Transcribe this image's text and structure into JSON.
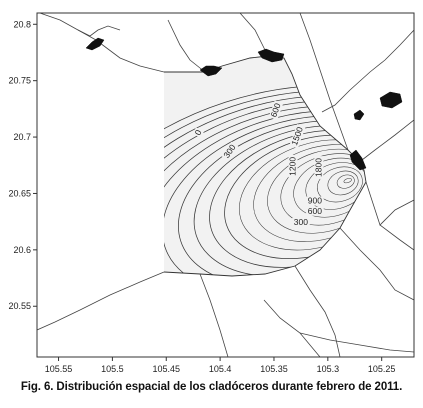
{
  "figure": {
    "caption": "Fig. 6. Distribución espacial de los cladóceros durante febrero de 2011."
  },
  "chart_data": {
    "type": "contour",
    "title": "",
    "xlabel": "",
    "ylabel": "",
    "xlim": [
      -105.57,
      -105.22
    ],
    "ylim": [
      20.505,
      20.81
    ],
    "x_ticks": [
      -105.55,
      -105.5,
      -105.45,
      -105.4,
      -105.35,
      -105.3,
      -105.25
    ],
    "x_tick_labels": [
      "105.55",
      "105.5",
      "105.45",
      "105.4",
      "105.35",
      "105.3",
      "105.25"
    ],
    "y_ticks": [
      20.55,
      20.6,
      20.65,
      20.7,
      20.75,
      20.8
    ],
    "y_tick_labels": [
      "20.55",
      "20.6",
      "20.65",
      "20.7",
      "20.75",
      "20.8"
    ],
    "contour_interval": 150,
    "contour_center": [
      -105.28,
      20.662
    ],
    "contour_levels": [
      0,
      150,
      300,
      450,
      600,
      750,
      900,
      1050,
      1200,
      1350,
      1500,
      1650,
      1800,
      1950,
      2100,
      2250,
      2400,
      2550,
      2700,
      2850,
      3000
    ],
    "contour_labels": [
      {
        "text": "0",
        "x": -105.418,
        "y": 20.703,
        "rotate": -65
      },
      {
        "text": "300",
        "x": -105.389,
        "y": 20.686,
        "rotate": -55
      },
      {
        "text": "300",
        "x": -105.325,
        "y": 20.622,
        "rotate": 0
      },
      {
        "text": "600",
        "x": -105.346,
        "y": 20.723,
        "rotate": -70
      },
      {
        "text": "600",
        "x": -105.312,
        "y": 20.632,
        "rotate": 0
      },
      {
        "text": "900",
        "x": -105.312,
        "y": 20.641,
        "rotate": 0
      },
      {
        "text": "1200",
        "x": -105.33,
        "y": 20.674,
        "rotate": -90
      },
      {
        "text": "1500",
        "x": -105.326,
        "y": 20.7,
        "rotate": -70
      },
      {
        "text": "1800",
        "x": -105.306,
        "y": 20.673,
        "rotate": -90
      }
    ],
    "grid": false,
    "legend": "none"
  }
}
